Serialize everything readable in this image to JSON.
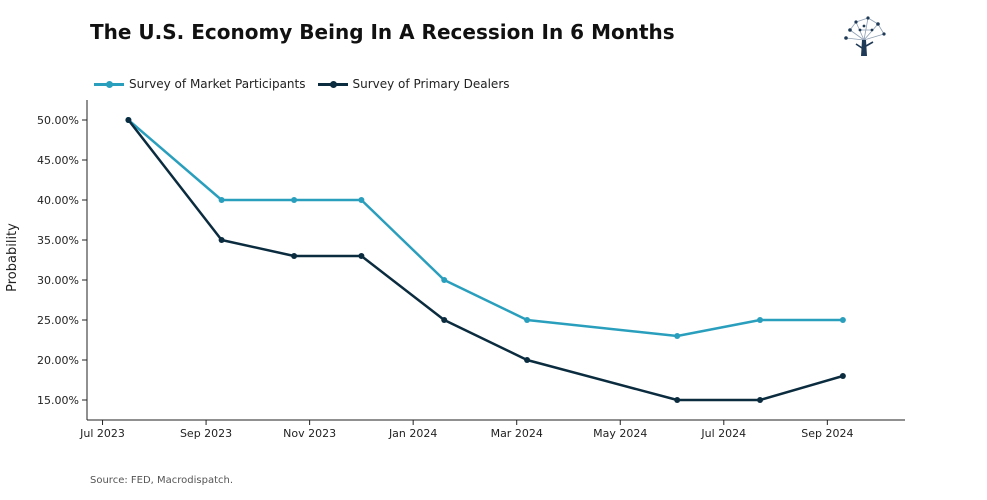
{
  "title": "The U.S. Economy Being In A Recession In 6 Months",
  "source": "Source: FED, Macrodispatch.",
  "logo_icon": "tree-network-icon",
  "colors": {
    "market": "#2a9fbd",
    "dealers": "#0b2c3f",
    "axis": "#222222"
  },
  "chart_data": {
    "type": "line",
    "title": "The U.S. Economy Being In A Recession In 6 Months",
    "xlabel": "",
    "ylabel": "Probability",
    "ylim": [
      12.5,
      52.5
    ],
    "yticks": [
      15,
      20,
      25,
      30,
      35,
      40,
      45,
      50
    ],
    "ytick_labels": [
      "15.00%",
      "20.00%",
      "25.00%",
      "30.00%",
      "35.00%",
      "40.00%",
      "45.00%",
      "50.00%"
    ],
    "xlim": [
      -0.3,
      15.5
    ],
    "xticks": [
      0,
      2,
      4,
      6,
      8,
      10,
      12,
      14
    ],
    "xtick_labels": [
      "Jul 2023",
      "Sep 2023",
      "Nov 2023",
      "Jan 2024",
      "Mar 2024",
      "May 2024",
      "Jul 2024",
      "Sep 2024"
    ],
    "legend_position": "top-left",
    "series": [
      {
        "name": "Survey of Market Participants",
        "color": "#2a9fbd",
        "x": [
          0.5,
          2.3,
          3.7,
          5.0,
          6.6,
          8.2,
          11.1,
          12.7,
          14.3
        ],
        "values": [
          50,
          40,
          40,
          40,
          30,
          25,
          23,
          25,
          25
        ]
      },
      {
        "name": "Survey of Primary Dealers",
        "color": "#0b2c3f",
        "x": [
          0.5,
          2.3,
          3.7,
          5.0,
          6.6,
          8.2,
          11.1,
          12.7,
          14.3
        ],
        "values": [
          50,
          35,
          33,
          33,
          25,
          20,
          15,
          15,
          18
        ]
      }
    ]
  }
}
